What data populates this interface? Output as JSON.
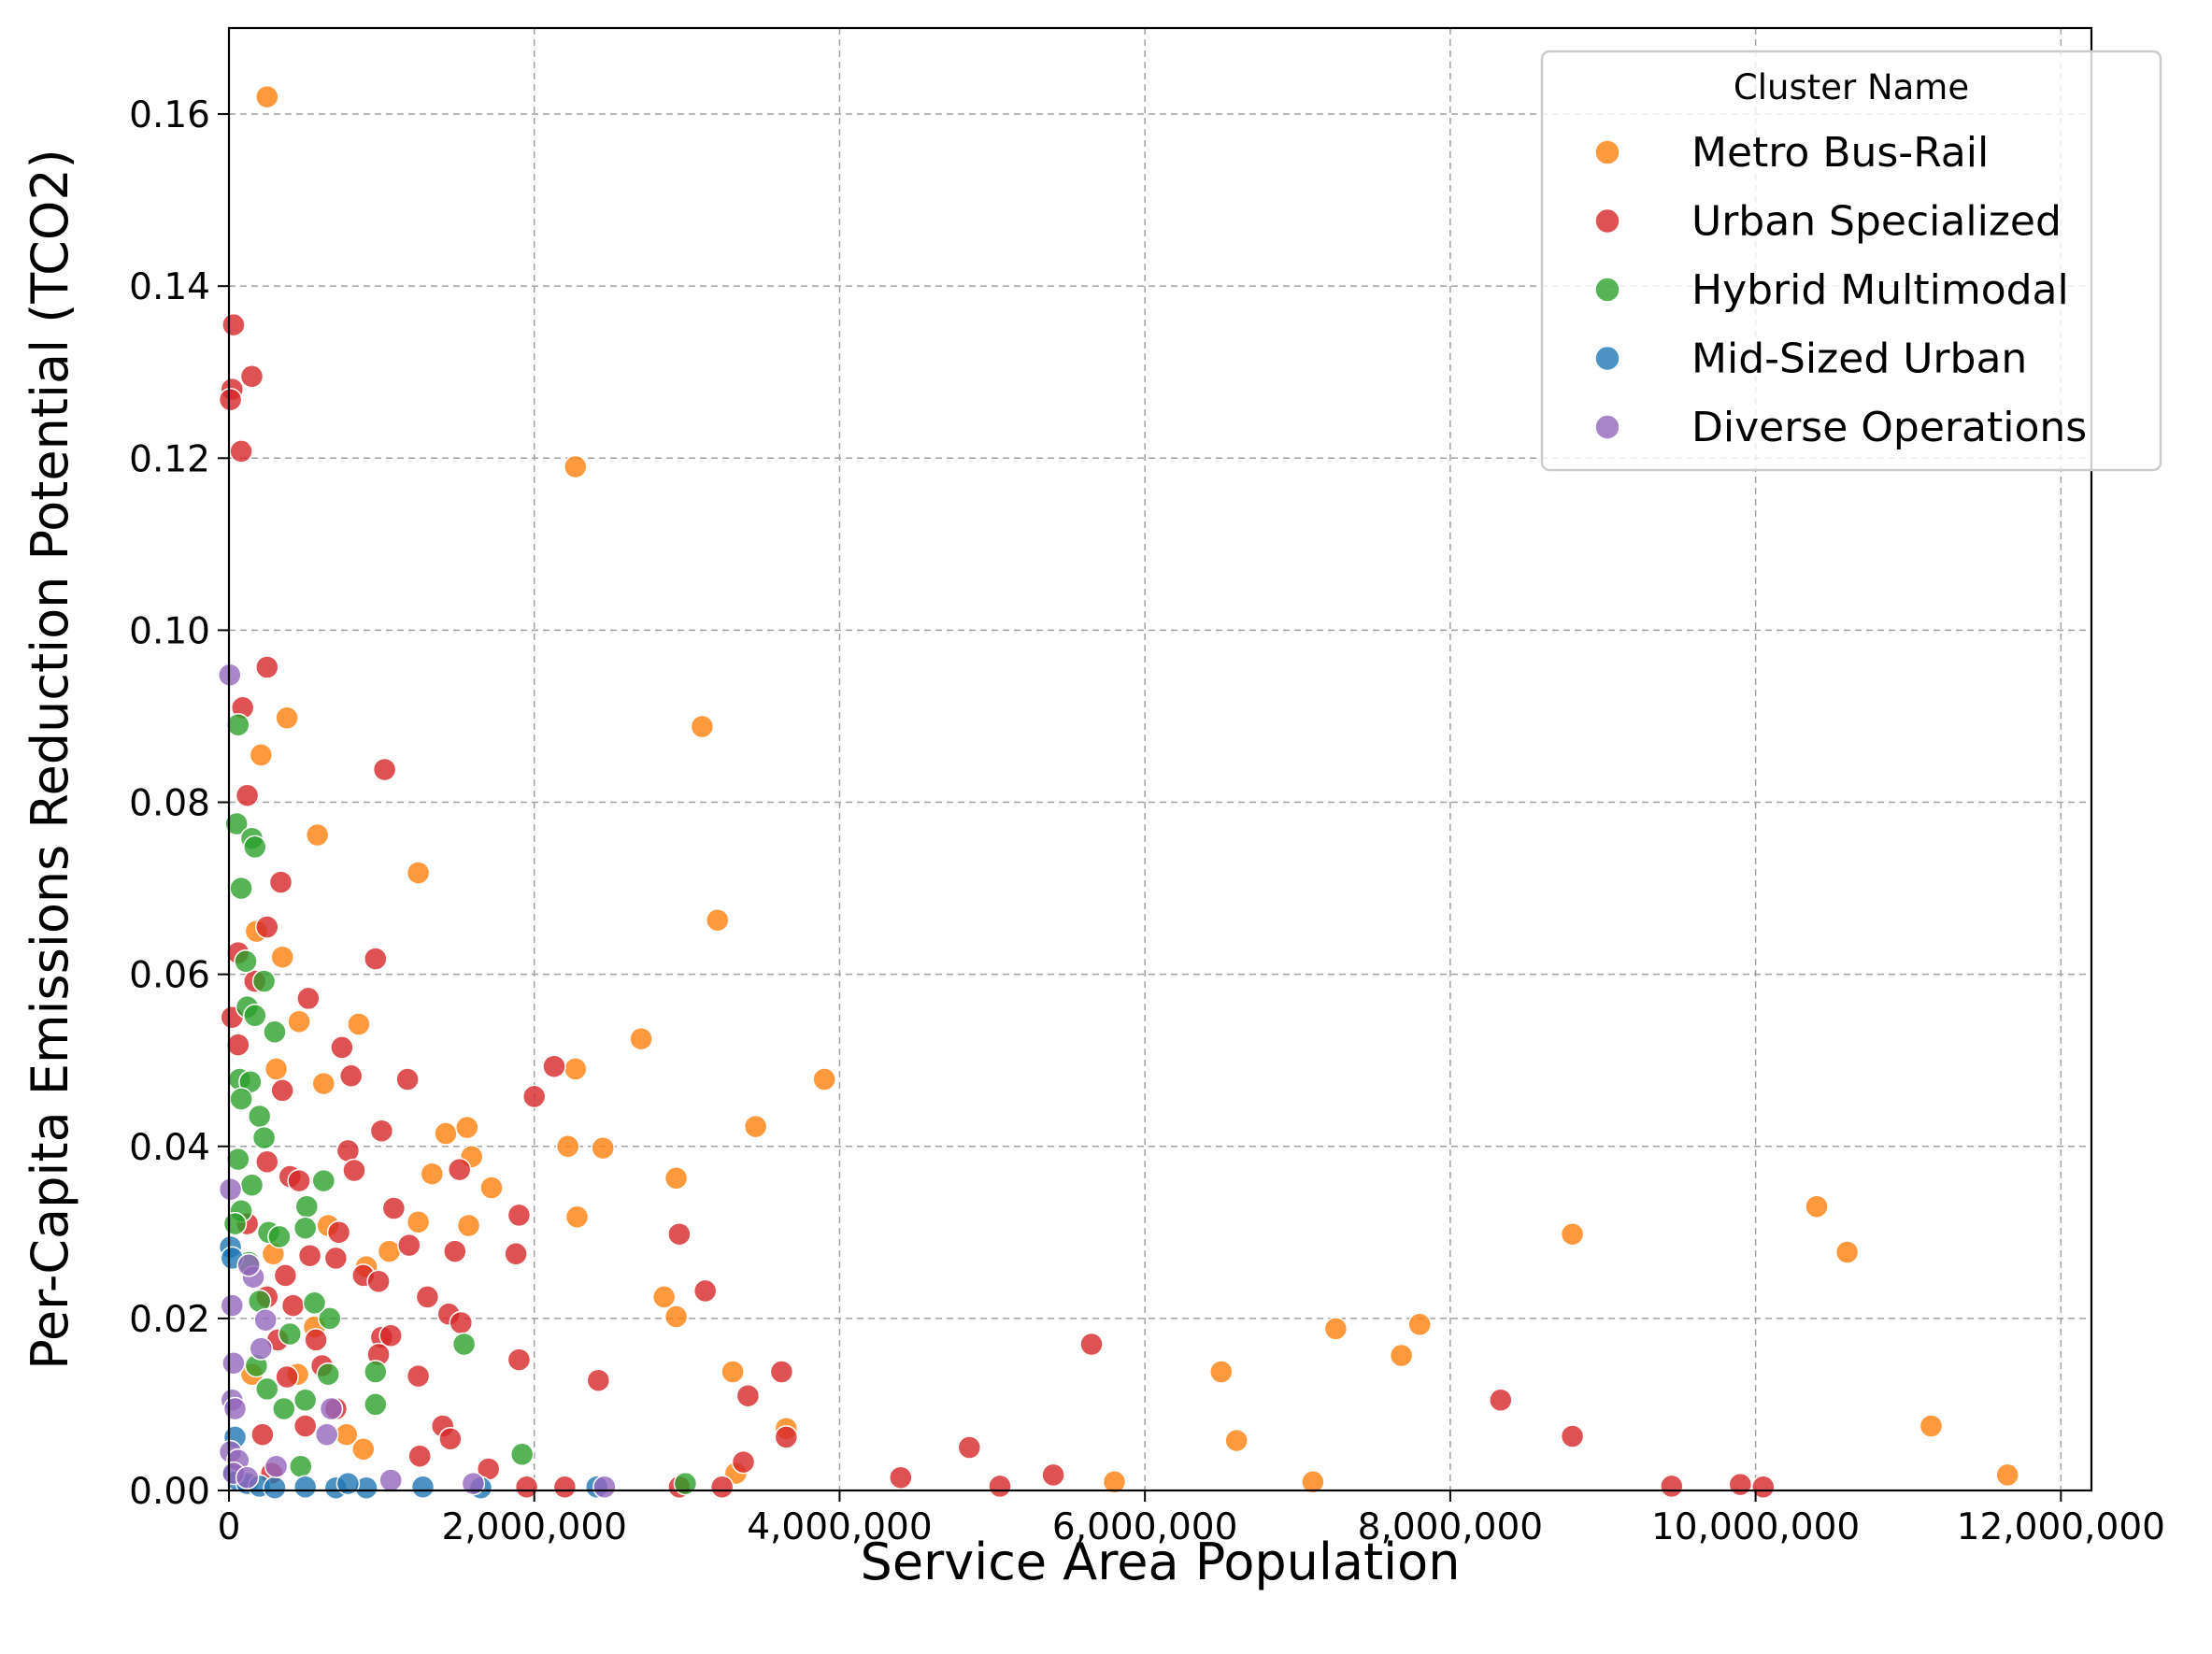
{
  "chart_data": {
    "type": "scatter",
    "title": "",
    "xlabel": "Service Area Population",
    "ylabel": "Per-Capita Emissions Reduction Potential (TCO2)",
    "xlim": [
      0,
      12200000
    ],
    "ylim": [
      0,
      0.17
    ],
    "xticks": [
      0,
      2000000,
      4000000,
      6000000,
      8000000,
      10000000,
      12000000
    ],
    "xtick_labels": [
      "0",
      "2,000,000",
      "4,000,000",
      "6,000,000",
      "8,000,000",
      "10,000,000",
      "12,000,000"
    ],
    "yticks": [
      0,
      0.02,
      0.04,
      0.06,
      0.08,
      0.1,
      0.12,
      0.14,
      0.16
    ],
    "ytick_labels": [
      "0.00",
      "0.02",
      "0.04",
      "0.06",
      "0.08",
      "0.10",
      "0.12",
      "0.14",
      "0.16"
    ],
    "grid": true,
    "legend": {
      "title": "Cluster Name",
      "position": "top-right"
    },
    "series": [
      {
        "name": "Metro Bus-Rail",
        "color": "#ff7f0e",
        "points": [
          [
            250000,
            0.162
          ],
          [
            2270000,
            0.119
          ],
          [
            3100000,
            0.0888
          ],
          [
            380000,
            0.0898
          ],
          [
            210000,
            0.0855
          ],
          [
            580000,
            0.0762
          ],
          [
            1240000,
            0.0718
          ],
          [
            3200000,
            0.0663
          ],
          [
            180000,
            0.065
          ],
          [
            350000,
            0.062
          ],
          [
            2700000,
            0.0525
          ],
          [
            3900000,
            0.0478
          ],
          [
            2270000,
            0.049
          ],
          [
            850000,
            0.0542
          ],
          [
            460000,
            0.0545
          ],
          [
            310000,
            0.049
          ],
          [
            620000,
            0.0473
          ],
          [
            1420000,
            0.0415
          ],
          [
            1560000,
            0.0422
          ],
          [
            3450000,
            0.0423
          ],
          [
            2220000,
            0.04
          ],
          [
            2450000,
            0.0398
          ],
          [
            1330000,
            0.0368
          ],
          [
            1590000,
            0.0388
          ],
          [
            1720000,
            0.0352
          ],
          [
            2930000,
            0.0363
          ],
          [
            2280000,
            0.0318
          ],
          [
            1240000,
            0.0312
          ],
          [
            1570000,
            0.0308
          ],
          [
            10400000,
            0.033
          ],
          [
            10600000,
            0.0277
          ],
          [
            8800000,
            0.0298
          ],
          [
            2850000,
            0.0225
          ],
          [
            2930000,
            0.0202
          ],
          [
            7250000,
            0.0188
          ],
          [
            7800000,
            0.0193
          ],
          [
            7680000,
            0.0157
          ],
          [
            6500000,
            0.0138
          ],
          [
            3300000,
            0.0138
          ],
          [
            11150000,
            0.0075
          ],
          [
            6600000,
            0.0058
          ],
          [
            3650000,
            0.0072
          ],
          [
            3320000,
            0.002
          ],
          [
            5800000,
            0.001
          ],
          [
            7100000,
            0.001
          ],
          [
            11650000,
            0.0018
          ],
          [
            650000,
            0.0308
          ],
          [
            900000,
            0.026
          ],
          [
            1050000,
            0.0278
          ],
          [
            770000,
            0.0065
          ],
          [
            450000,
            0.0135
          ],
          [
            150000,
            0.0135
          ],
          [
            290000,
            0.0275
          ],
          [
            560000,
            0.019
          ],
          [
            880000,
            0.0048
          ]
        ]
      },
      {
        "name": "Urban Specialized",
        "color": "#d62728",
        "points": [
          [
            30000,
            0.1355
          ],
          [
            150000,
            0.1295
          ],
          [
            20000,
            0.128
          ],
          [
            10000,
            0.1268
          ],
          [
            80000,
            0.1208
          ],
          [
            250000,
            0.0957
          ],
          [
            90000,
            0.091
          ],
          [
            1020000,
            0.0838
          ],
          [
            120000,
            0.0808
          ],
          [
            340000,
            0.0707
          ],
          [
            250000,
            0.0655
          ],
          [
            60000,
            0.0625
          ],
          [
            960000,
            0.0618
          ],
          [
            520000,
            0.0572
          ],
          [
            20000,
            0.055
          ],
          [
            170000,
            0.0592
          ],
          [
            740000,
            0.0515
          ],
          [
            2130000,
            0.0493
          ],
          [
            1170000,
            0.0478
          ],
          [
            2000000,
            0.0458
          ],
          [
            60000,
            0.0518
          ],
          [
            350000,
            0.0465
          ],
          [
            800000,
            0.0482
          ],
          [
            1000000,
            0.0418
          ],
          [
            780000,
            0.0395
          ],
          [
            1510000,
            0.0373
          ],
          [
            820000,
            0.0372
          ],
          [
            1900000,
            0.032
          ],
          [
            1080000,
            0.0328
          ],
          [
            1880000,
            0.0275
          ],
          [
            1480000,
            0.0278
          ],
          [
            1180000,
            0.0285
          ],
          [
            2950000,
            0.0298
          ],
          [
            3120000,
            0.0232
          ],
          [
            1300000,
            0.0225
          ],
          [
            1440000,
            0.0205
          ],
          [
            1520000,
            0.0195
          ],
          [
            1000000,
            0.0178
          ],
          [
            1060000,
            0.018
          ],
          [
            1900000,
            0.0152
          ],
          [
            980000,
            0.0158
          ],
          [
            1240000,
            0.0133
          ],
          [
            2420000,
            0.0128
          ],
          [
            5650000,
            0.017
          ],
          [
            3620000,
            0.0138
          ],
          [
            3400000,
            0.011
          ],
          [
            8330000,
            0.0105
          ],
          [
            3650000,
            0.0062
          ],
          [
            4850000,
            0.005
          ],
          [
            8800000,
            0.0063
          ],
          [
            1400000,
            0.0075
          ],
          [
            1450000,
            0.006
          ],
          [
            3370000,
            0.0033
          ],
          [
            1250000,
            0.004
          ],
          [
            1700000,
            0.0025
          ],
          [
            4400000,
            0.0015
          ],
          [
            5400000,
            0.0018
          ],
          [
            5050000,
            0.0005
          ],
          [
            9450000,
            0.0005
          ],
          [
            9900000,
            0.0007
          ],
          [
            10050000,
            0.0004
          ],
          [
            2200000,
            0.0004
          ],
          [
            2950000,
            0.0004
          ],
          [
            1950000,
            0.0004
          ],
          [
            3230000,
            0.0004
          ],
          [
            400000,
            0.0365
          ],
          [
            460000,
            0.036
          ],
          [
            250000,
            0.0382
          ],
          [
            720000,
            0.03
          ],
          [
            700000,
            0.027
          ],
          [
            530000,
            0.0273
          ],
          [
            370000,
            0.025
          ],
          [
            420000,
            0.0215
          ],
          [
            570000,
            0.0175
          ],
          [
            320000,
            0.0175
          ],
          [
            610000,
            0.0145
          ],
          [
            380000,
            0.0132
          ],
          [
            700000,
            0.0095
          ],
          [
            500000,
            0.0075
          ],
          [
            220000,
            0.0065
          ],
          [
            280000,
            0.002
          ],
          [
            880000,
            0.025
          ],
          [
            980000,
            0.0243
          ],
          [
            250000,
            0.0225
          ],
          [
            120000,
            0.031
          ]
        ]
      },
      {
        "name": "Hybrid Multimodal",
        "color": "#2ca02c",
        "points": [
          [
            50000,
            0.0775
          ],
          [
            60000,
            0.089
          ],
          [
            150000,
            0.0758
          ],
          [
            170000,
            0.0748
          ],
          [
            80000,
            0.07
          ],
          [
            110000,
            0.0615
          ],
          [
            230000,
            0.0592
          ],
          [
            300000,
            0.0533
          ],
          [
            120000,
            0.0562
          ],
          [
            170000,
            0.0552
          ],
          [
            70000,
            0.0478
          ],
          [
            140000,
            0.0475
          ],
          [
            200000,
            0.0435
          ],
          [
            80000,
            0.0455
          ],
          [
            60000,
            0.0385
          ],
          [
            150000,
            0.0355
          ],
          [
            230000,
            0.041
          ],
          [
            620000,
            0.036
          ],
          [
            510000,
            0.033
          ],
          [
            260000,
            0.03
          ],
          [
            330000,
            0.0295
          ],
          [
            500000,
            0.0305
          ],
          [
            660000,
            0.02
          ],
          [
            130000,
            0.0265
          ],
          [
            200000,
            0.022
          ],
          [
            560000,
            0.0218
          ],
          [
            400000,
            0.0182
          ],
          [
            1540000,
            0.017
          ],
          [
            960000,
            0.0138
          ],
          [
            180000,
            0.0145
          ],
          [
            650000,
            0.0135
          ],
          [
            250000,
            0.0118
          ],
          [
            500000,
            0.0105
          ],
          [
            960000,
            0.01
          ],
          [
            360000,
            0.0095
          ],
          [
            1920000,
            0.0042
          ],
          [
            470000,
            0.0028
          ],
          [
            2990000,
            0.0008
          ],
          [
            80000,
            0.0325
          ],
          [
            40000,
            0.031
          ]
        ]
      },
      {
        "name": "Mid-Sized Urban",
        "color": "#1f77b4",
        "points": [
          [
            10000,
            0.0283
          ],
          [
            20000,
            0.027
          ],
          [
            40000,
            0.0062
          ],
          [
            30000,
            0.0018
          ],
          [
            60000,
            0.0012
          ],
          [
            120000,
            0.0008
          ],
          [
            200000,
            0.0005
          ],
          [
            300000,
            0.0003
          ],
          [
            500000,
            0.0004
          ],
          [
            700000,
            0.0003
          ],
          [
            900000,
            0.0003
          ],
          [
            1270000,
            0.0004
          ],
          [
            1650000,
            0.0003
          ],
          [
            2410000,
            0.0004
          ],
          [
            780000,
            0.0008
          ]
        ]
      },
      {
        "name": "Diverse Operations",
        "color": "#9467bd",
        "points": [
          [
            5000,
            0.0948
          ],
          [
            10000,
            0.035
          ],
          [
            20000,
            0.0215
          ],
          [
            30000,
            0.0148
          ],
          [
            20000,
            0.0105
          ],
          [
            40000,
            0.0095
          ],
          [
            160000,
            0.0248
          ],
          [
            130000,
            0.0262
          ],
          [
            240000,
            0.0198
          ],
          [
            210000,
            0.0165
          ],
          [
            10000,
            0.0045
          ],
          [
            60000,
            0.0035
          ],
          [
            30000,
            0.002
          ],
          [
            120000,
            0.0015
          ],
          [
            310000,
            0.0028
          ],
          [
            640000,
            0.0065
          ],
          [
            670000,
            0.0095
          ],
          [
            1060000,
            0.0012
          ],
          [
            1600000,
            0.0008
          ],
          [
            2460000,
            0.0004
          ]
        ]
      }
    ]
  }
}
